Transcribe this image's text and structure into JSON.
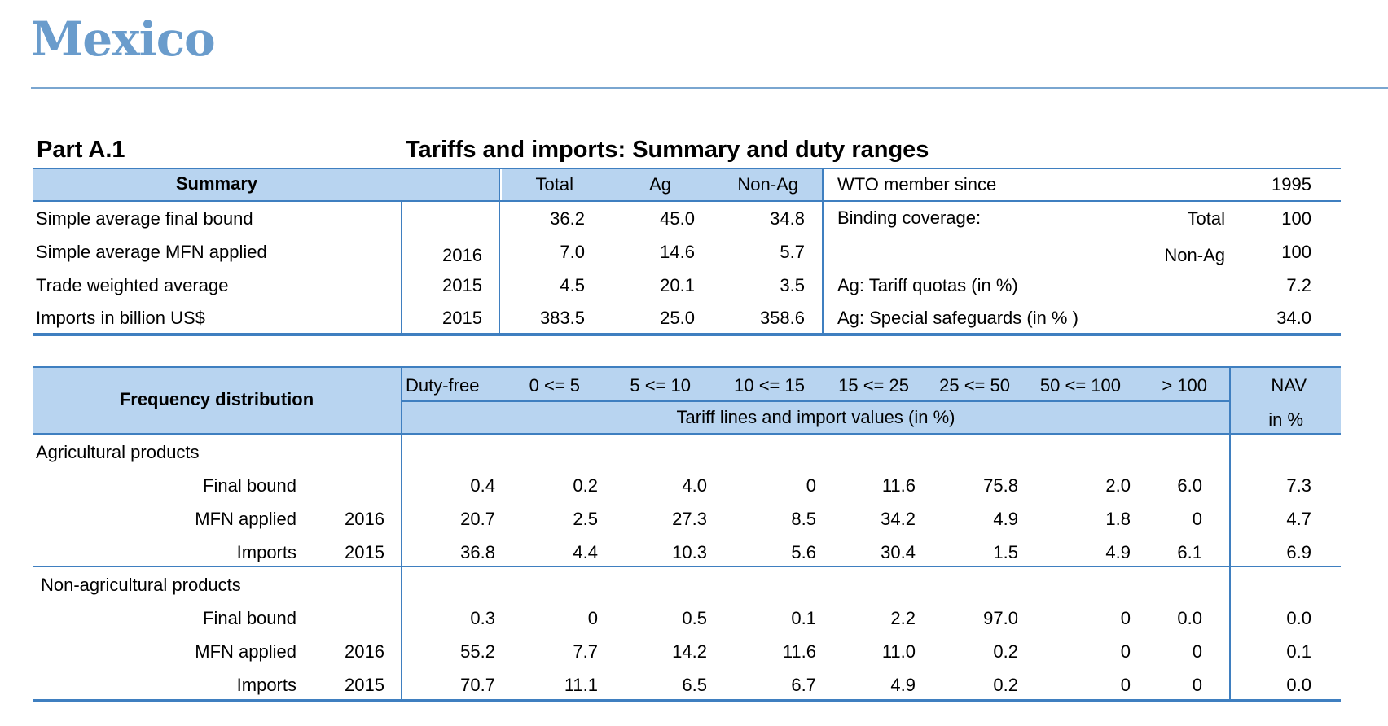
{
  "country": "Mexico",
  "part": "Part A.1",
  "section_title": "Tariffs and imports: Summary and duty ranges",
  "summary": {
    "header": "Summary",
    "col_total": "Total",
    "col_ag": "Ag",
    "col_nonag": "Non-Ag",
    "rows": [
      {
        "label": "Simple average final bound",
        "year": "",
        "total": "36.2",
        "ag": "45.0",
        "nonag": "34.8"
      },
      {
        "label": "Simple average MFN applied",
        "year": "2016",
        "total": "7.0",
        "ag": "14.6",
        "nonag": "5.7"
      },
      {
        "label": "Trade weighted average",
        "year": "2015",
        "total": "4.5",
        "ag": "20.1",
        "nonag": "3.5"
      },
      {
        "label": "Imports in billion US$",
        "year": "2015",
        "total": "383.5",
        "ag": "25.0",
        "nonag": "358.6"
      }
    ],
    "wto_label": "WTO member since",
    "wto_value": "1995",
    "binding_label": "Binding coverage:",
    "binding_total_label": "Total",
    "binding_total_value": "100",
    "binding_nonag_label": "Non-Ag",
    "binding_nonag_value": "100",
    "tariff_quotas_label": "Ag: Tariff quotas  (in %)",
    "tariff_quotas_value": "7.2",
    "safeguards_label": "Ag: Special safeguards (in % )",
    "safeguards_value": "34.0"
  },
  "frequency": {
    "header": "Frequency distribution",
    "ranges": [
      "Duty-free",
      "0 <= 5",
      "5 <= 10",
      "10 <= 15",
      "15 <= 25",
      "25 <= 50",
      "50 <= 100",
      "> 100"
    ],
    "subheader": "Tariff lines and import values (in %)",
    "nav_label": "NAV",
    "nav_sub": "in %",
    "groups": [
      {
        "name": "Agricultural products",
        "rows": [
          {
            "label": "Final bound",
            "year": "",
            "values": [
              "0.4",
              "0.2",
              "4.0",
              "0",
              "11.6",
              "75.8",
              "2.0",
              "6.0"
            ],
            "nav": "7.3"
          },
          {
            "label": "MFN applied",
            "year": "2016",
            "values": [
              "20.7",
              "2.5",
              "27.3",
              "8.5",
              "34.2",
              "4.9",
              "1.8",
              "0"
            ],
            "nav": "4.7"
          },
          {
            "label": "Imports",
            "year": "2015",
            "values": [
              "36.8",
              "4.4",
              "10.3",
              "5.6",
              "30.4",
              "1.5",
              "4.9",
              "6.1"
            ],
            "nav": "6.9"
          }
        ]
      },
      {
        "name": "Non-agricultural products",
        "rows": [
          {
            "label": "Final bound",
            "year": "",
            "values": [
              "0.3",
              "0",
              "0.5",
              "0.1",
              "2.2",
              "97.0",
              "0",
              "0.0"
            ],
            "nav": "0.0"
          },
          {
            "label": "MFN applied",
            "year": "2016",
            "values": [
              "55.2",
              "7.7",
              "14.2",
              "11.6",
              "11.0",
              "0.2",
              "0",
              "0"
            ],
            "nav": "0.1"
          },
          {
            "label": "Imports",
            "year": "2015",
            "values": [
              "70.7",
              "11.1",
              "6.5",
              "6.7",
              "4.9",
              "0.2",
              "0",
              "0"
            ],
            "nav": "0.0"
          }
        ]
      }
    ]
  },
  "colors": {
    "title": "#6a9ccc",
    "band": "#b8d4f0",
    "rule": "#3f7fc0"
  }
}
